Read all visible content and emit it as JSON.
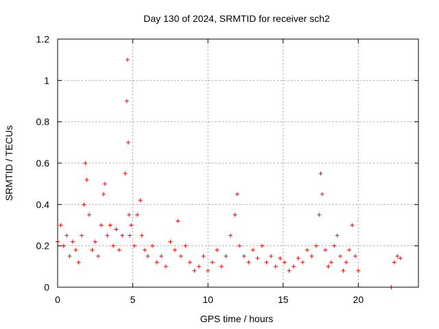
{
  "chart_data": {
    "type": "scatter",
    "title": "Day 130 of 2024, SRMTID for receiver sch2",
    "xlabel": "GPS time / hours",
    "ylabel": "SRMTID / TECUs",
    "xlim": [
      0,
      24
    ],
    "ylim": [
      0,
      1.2
    ],
    "x_ticks": [
      0,
      5,
      10,
      15,
      20
    ],
    "x_tick_labels": [
      "0",
      "5",
      "10",
      "15",
      "20"
    ],
    "y_ticks": [
      0,
      0.2,
      0.4,
      0.6,
      0.8,
      1.0,
      1.2
    ],
    "y_tick_labels": [
      "0",
      "0.2",
      "0.4",
      "0.6",
      "0.8",
      "1",
      "1.2"
    ],
    "grid": true,
    "marker": "+",
    "series": [
      {
        "name": "SRMTID",
        "color": "#ff0000",
        "x": [
          0.0,
          0.2,
          0.4,
          0.6,
          0.8,
          1.0,
          1.2,
          1.4,
          1.6,
          1.75,
          1.85,
          1.95,
          2.1,
          2.3,
          2.5,
          2.7,
          2.9,
          3.05,
          3.15,
          3.3,
          3.5,
          3.7,
          3.9,
          4.1,
          4.3,
          4.5,
          4.6,
          4.65,
          4.7,
          4.75,
          4.8,
          4.9,
          5.1,
          5.3,
          5.5,
          5.6,
          5.8,
          6.0,
          6.3,
          6.6,
          6.9,
          7.2,
          7.5,
          7.8,
          8.0,
          8.2,
          8.5,
          8.8,
          9.1,
          9.4,
          9.7,
          10.0,
          10.3,
          10.6,
          10.9,
          11.2,
          11.5,
          11.8,
          11.95,
          12.1,
          12.4,
          12.7,
          13.0,
          13.3,
          13.6,
          13.9,
          14.2,
          14.5,
          14.8,
          15.1,
          15.4,
          15.7,
          16.0,
          16.3,
          16.6,
          16.9,
          17.2,
          17.4,
          17.5,
          17.6,
          17.8,
          18.0,
          18.2,
          18.4,
          18.6,
          18.8,
          19.0,
          19.2,
          19.4,
          19.6,
          19.8,
          20.0,
          22.2,
          22.4,
          22.6,
          22.8
        ],
        "y": [
          0.22,
          0.3,
          0.2,
          0.25,
          0.15,
          0.22,
          0.18,
          0.12,
          0.25,
          0.4,
          0.6,
          0.52,
          0.35,
          0.18,
          0.22,
          0.15,
          0.3,
          0.45,
          0.5,
          0.25,
          0.3,
          0.2,
          0.28,
          0.18,
          0.25,
          0.55,
          0.9,
          1.1,
          0.7,
          0.35,
          0.25,
          0.3,
          0.2,
          0.35,
          0.42,
          0.25,
          0.18,
          0.15,
          0.2,
          0.12,
          0.15,
          0.1,
          0.22,
          0.18,
          0.32,
          0.15,
          0.2,
          0.12,
          0.08,
          0.1,
          0.15,
          0.08,
          0.12,
          0.18,
          0.1,
          0.15,
          0.25,
          0.35,
          0.45,
          0.2,
          0.15,
          0.12,
          0.18,
          0.14,
          0.2,
          0.12,
          0.15,
          0.1,
          0.14,
          0.12,
          0.08,
          0.1,
          0.14,
          0.12,
          0.18,
          0.15,
          0.2,
          0.35,
          0.55,
          0.45,
          0.18,
          0.1,
          0.12,
          0.2,
          0.25,
          0.15,
          0.08,
          0.12,
          0.18,
          0.3,
          0.15,
          0.08,
          0.0,
          0.12,
          0.15,
          0.14
        ]
      }
    ]
  }
}
